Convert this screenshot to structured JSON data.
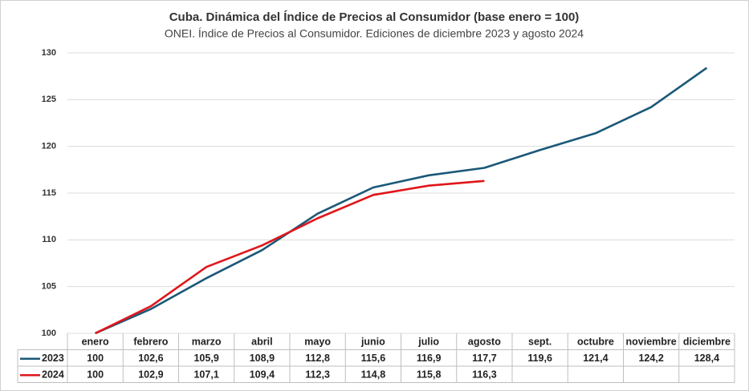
{
  "chart_data": {
    "type": "line",
    "title": "Cuba. Dinámica del Índice de Precios al Consumidor (base enero = 100)",
    "subtitle": "ONEI. Índice de Precios al Consumidor. Ediciones de diciembre 2023 y agosto 2024",
    "categories": [
      "enero",
      "febrero",
      "marzo",
      "abril",
      "mayo",
      "junio",
      "julio",
      "agosto",
      "sept.",
      "octubre",
      "noviembre",
      "diciembre"
    ],
    "series": [
      {
        "name": "2023",
        "color": "#1b5878",
        "values": [
          100,
          102.6,
          105.9,
          108.9,
          112.8,
          115.6,
          116.9,
          117.7,
          119.6,
          121.4,
          124.2,
          128.4
        ],
        "value_labels": [
          "100",
          "102,6",
          "105,9",
          "108,9",
          "112,8",
          "115,6",
          "116,9",
          "117,7",
          "119,6",
          "121,4",
          "124,2",
          "128,4"
        ]
      },
      {
        "name": "2024",
        "color": "#e0161b",
        "values": [
          100,
          102.9,
          107.1,
          109.4,
          112.3,
          114.8,
          115.8,
          116.3,
          null,
          null,
          null,
          null
        ],
        "value_labels": [
          "100",
          "102,9",
          "107,1",
          "109,4",
          "112,3",
          "114,8",
          "115,8",
          "116,3",
          null,
          null,
          null,
          null
        ]
      }
    ],
    "ylim": [
      100,
      130
    ],
    "yticks": [
      100,
      105,
      110,
      115,
      120,
      125,
      130
    ],
    "grid": true
  }
}
